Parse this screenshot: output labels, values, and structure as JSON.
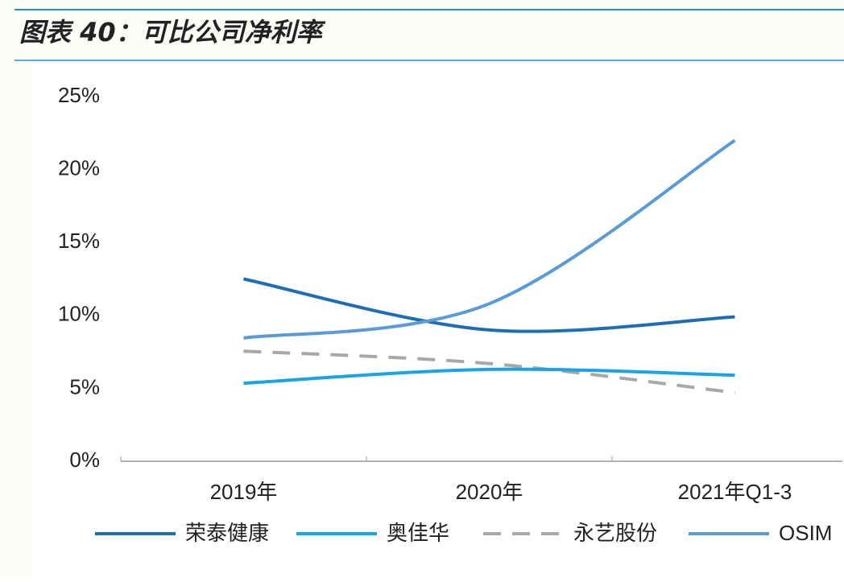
{
  "chart_data": {
    "type": "line",
    "title": "图表 40：可比公司净利率",
    "categories": [
      "2019年",
      "2020年",
      "2021年Q1-3"
    ],
    "series": [
      {
        "name": "荣泰健康",
        "color": "#1f6db5",
        "dash": false,
        "values": [
          12.5,
          9.0,
          9.9
        ]
      },
      {
        "name": "奥佳华",
        "color": "#19a4e6",
        "dash": false,
        "values": [
          5.35,
          6.3,
          5.9
        ]
      },
      {
        "name": "永艺股份",
        "color": "#a8a8a8",
        "dash": true,
        "values": [
          7.55,
          6.7,
          4.7
        ]
      },
      {
        "name": "OSIM",
        "color": "#5b9bd5",
        "dash": false,
        "values": [
          8.45,
          10.8,
          22.0
        ]
      }
    ],
    "ylim": [
      0,
      25
    ],
    "yticks": [
      {
        "value": 0,
        "label": "0%"
      },
      {
        "value": 5,
        "label": "5%"
      },
      {
        "value": 10,
        "label": "10%"
      },
      {
        "value": 15,
        "label": "15%"
      },
      {
        "value": 20,
        "label": "20%"
      },
      {
        "value": 25,
        "label": "25%"
      }
    ],
    "grid": false,
    "smooth": true,
    "legend": "bottom"
  }
}
